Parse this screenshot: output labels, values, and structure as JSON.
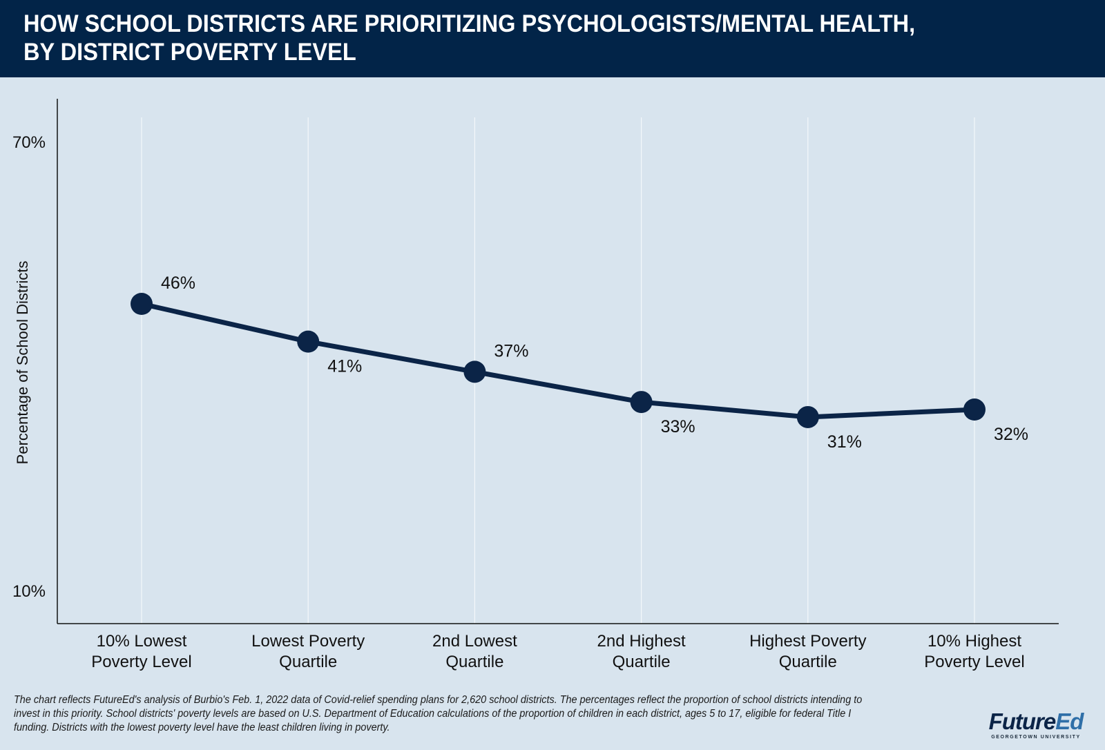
{
  "header": {
    "title_line1": "HOW SCHOOL DISTRICTS ARE PRIORITIZING PSYCHOLOGISTS/MENTAL HEALTH,",
    "title_line2": "BY DISTRICT POVERTY LEVEL"
  },
  "colors": {
    "header_bg": "#022448",
    "background": "#d8e4ee",
    "line": "#0b2447",
    "logo_primary": "#0b2447",
    "logo_accent": "#2f6fa8"
  },
  "chart_data": {
    "type": "line",
    "title": "How School Districts Are Prioritizing Psychologists/Mental Health, by District Poverty Level",
    "xlabel": "",
    "ylabel": "Percentage of School Districts",
    "ylim": [
      10,
      70
    ],
    "yticks": [
      {
        "value": 70,
        "label": "70%"
      },
      {
        "value": 10,
        "label": "10%"
      }
    ],
    "grid": "vertical",
    "legend": "none",
    "categories": [
      [
        "10% Lowest",
        "Poverty Level"
      ],
      [
        "Lowest Poverty",
        "Quartile"
      ],
      [
        "2nd Lowest",
        "Quartile"
      ],
      [
        "2nd Highest",
        "Quartile"
      ],
      [
        "Highest Poverty",
        "Quartile"
      ],
      [
        "10% Highest",
        "Poverty Level"
      ]
    ],
    "series": [
      {
        "name": "Psychologists/Mental Health",
        "values": [
          46,
          41,
          37,
          33,
          31,
          32
        ],
        "labels": [
          "46%",
          "41%",
          "37%",
          "33%",
          "31%",
          "32%"
        ],
        "label_positions": [
          "above",
          "below",
          "above",
          "below",
          "below",
          "below"
        ]
      }
    ]
  },
  "footnote": "The chart reflects FutureEd's analysis of Burbio's Feb. 1, 2022 data of Covid-relief spending plans for 2,620 school districts. The percentages reflect the proportion of school districts intending to invest in this priority. School districts' poverty levels are based on U.S. Department of Education calculations of the proportion of children in each district, ages 5 to 17, eligible for federal Title I funding. Districts with the lowest poverty level have the least children living in poverty.",
  "logo": {
    "part1": "Future",
    "part2": "Ed",
    "subtitle": "GEORGETOWN UNIVERSITY"
  }
}
